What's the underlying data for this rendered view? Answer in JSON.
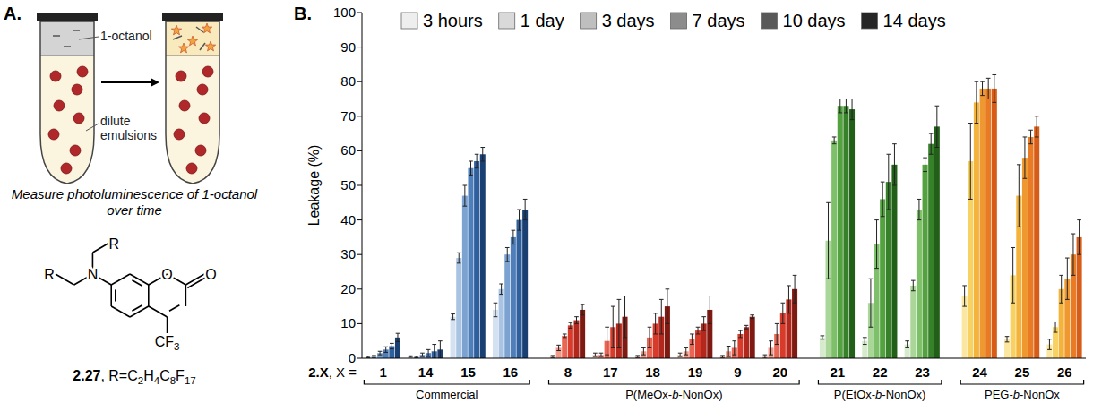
{
  "chart_data": {
    "type": "bar",
    "panel_label": "B.",
    "y_label": "Leakage (%)",
    "x_label": "2.X, X =",
    "categories": [
      "1",
      "14",
      "15",
      "16",
      "8",
      "17",
      "18",
      "19",
      "9",
      "20",
      "21",
      "22",
      "23",
      "24",
      "25",
      "26"
    ],
    "groups": [
      {
        "label": "Commercial",
        "categories": [
          "1",
          "14",
          "15",
          "16"
        ]
      },
      {
        "label": "P(MeOx-b-NonOx)",
        "categories": [
          "8",
          "17",
          "18",
          "19",
          "9",
          "20"
        ]
      },
      {
        "label": "P(EtOx-b-NonOx)",
        "categories": [
          "21",
          "22",
          "23"
        ]
      },
      {
        "label": "PEG-b-NonOx",
        "categories": [
          "24",
          "25",
          "26"
        ]
      }
    ],
    "ylim": [
      0,
      100
    ],
    "yticks": [
      0,
      10,
      20,
      30,
      40,
      50,
      60,
      70,
      80,
      90,
      100
    ],
    "grid": false,
    "legend": "top",
    "series": [
      {
        "name": "3 hours",
        "color": "#eeeeee",
        "colors": [
          "#d4e1f0",
          "#d4e1f0",
          "#d4e1f0",
          "#d4e1f0",
          "#f9cdc4",
          "#f9cdc4",
          "#f9cdc4",
          "#f9cdc4",
          "#f9cdc4",
          "#f9cdc4",
          "#d6ebcd",
          "#d6ebcd",
          "#d6ebcd",
          "#fbe7a1",
          "#fbe7a1",
          "#fbe7a1"
        ],
        "values": [
          0.3,
          0.5,
          12,
          14,
          0.5,
          1,
          0.5,
          1,
          0.5,
          0.5,
          6,
          5,
          4,
          18,
          5.5,
          4
        ],
        "errors": [
          0.2,
          0.2,
          0.8,
          2,
          0.3,
          0.5,
          0.3,
          0.5,
          0.3,
          0.5,
          0.5,
          1,
          1,
          3,
          0.8,
          1.5
        ]
      },
      {
        "name": "1 day",
        "color": "#d9d9d9",
        "colors": [
          "#a9c3e3",
          "#a9c3e3",
          "#a9c3e3",
          "#a9c3e3",
          "#f3998a",
          "#f3998a",
          "#f3998a",
          "#f3998a",
          "#f3998a",
          "#f3998a",
          "#aad69a",
          "#aad69a",
          "#aad69a",
          "#f8d163",
          "#f8d163",
          "#f8d163"
        ],
        "values": [
          0.5,
          0.3,
          29,
          20,
          3,
          1,
          2,
          2,
          2,
          3,
          34,
          16,
          21,
          57,
          24,
          9
        ],
        "errors": [
          0.3,
          0.2,
          1.5,
          1.5,
          0.8,
          0.5,
          1,
          1,
          1.5,
          2,
          11,
          7,
          1.5,
          11,
          8,
          1.5
        ]
      },
      {
        "name": "3 days",
        "color": "#bfbfbf",
        "colors": [
          "#7ba2d0",
          "#7ba2d0",
          "#7ba2d0",
          "#7ba2d0",
          "#ea6654",
          "#ea6654",
          "#ea6654",
          "#ea6654",
          "#ea6654",
          "#ea6654",
          "#7ebf69",
          "#7ebf69",
          "#7ebf69",
          "#f4b43c",
          "#f4b43c",
          "#f4b43c"
        ],
        "values": [
          1.5,
          1,
          47,
          30,
          6.5,
          5,
          6,
          5.5,
          3,
          7,
          63,
          33,
          43,
          74,
          47,
          20
        ],
        "errors": [
          0.5,
          0.5,
          3,
          2,
          0.5,
          4,
          3,
          1.5,
          2,
          3,
          1,
          7,
          3,
          6,
          9,
          4
        ]
      },
      {
        "name": "7 days",
        "color": "#8c8c8c",
        "colors": [
          "#4e7fba",
          "#4e7fba",
          "#4e7fba",
          "#4e7fba",
          "#d93b2b",
          "#d93b2b",
          "#d93b2b",
          "#d93b2b",
          "#d93b2b",
          "#d93b2b",
          "#54a140",
          "#54a140",
          "#54a140",
          "#f09830",
          "#f09830",
          "#f09830"
        ],
        "values": [
          2.5,
          1.5,
          55,
          35,
          9.5,
          9,
          10,
          8,
          7,
          13,
          73,
          46,
          56,
          78,
          58,
          23
        ],
        "errors": [
          0.8,
          1,
          2,
          2,
          0.8,
          6,
          3,
          1,
          1,
          3,
          2,
          5,
          2,
          2,
          6,
          6
        ]
      },
      {
        "name": "10 days",
        "color": "#595959",
        "colors": [
          "#2f5f9c",
          "#2f5f9c",
          "#2f5f9c",
          "#2f5f9c",
          "#b3281c",
          "#b3281c",
          "#b3281c",
          "#b3281c",
          "#b3281c",
          "#b3281c",
          "#37812a",
          "#37812a",
          "#37812a",
          "#e97b24",
          "#e97b24",
          "#e97b24"
        ],
        "values": [
          3.5,
          2,
          57,
          40,
          11,
          10,
          12,
          10,
          9,
          17,
          73,
          51,
          62,
          78,
          64,
          30
        ],
        "errors": [
          0.8,
          2,
          2,
          3,
          1,
          7,
          5,
          2,
          0.5,
          4,
          2,
          8,
          3,
          3,
          2,
          6
        ]
      },
      {
        "name": "14 days",
        "color": "#262626",
        "colors": [
          "#1a3f73",
          "#1a3f73",
          "#1a3f73",
          "#1a3f73",
          "#7f1a12",
          "#7f1a12",
          "#7f1a12",
          "#7f1a12",
          "#7f1a12",
          "#7f1a12",
          "#22601a",
          "#22601a",
          "#22601a",
          "#d75c18",
          "#d75c18",
          "#d75c18"
        ],
        "values": [
          6,
          2.5,
          59,
          43,
          14,
          12,
          15,
          14,
          12,
          20,
          72,
          56,
          67,
          78,
          67,
          35
        ],
        "errors": [
          1.2,
          2.5,
          2,
          3,
          1.5,
          6,
          5,
          4,
          0.5,
          4,
          3,
          6,
          6,
          4,
          3,
          5
        ]
      }
    ]
  },
  "panel_a": {
    "panel_label": "A.",
    "top_layer_label": "1-octanol",
    "bottom_layer_label": "dilute emulsions",
    "caption": "Measure photoluminescence of 1-octanol over time",
    "structure": {
      "substituents": [
        "R",
        "R"
      ],
      "amine": "N",
      "ring_oxygen": "O",
      "carbonyl_oxygen": "O",
      "group": "CF3"
    },
    "compound_label": "2.27, R=C2H4C8F17"
  }
}
